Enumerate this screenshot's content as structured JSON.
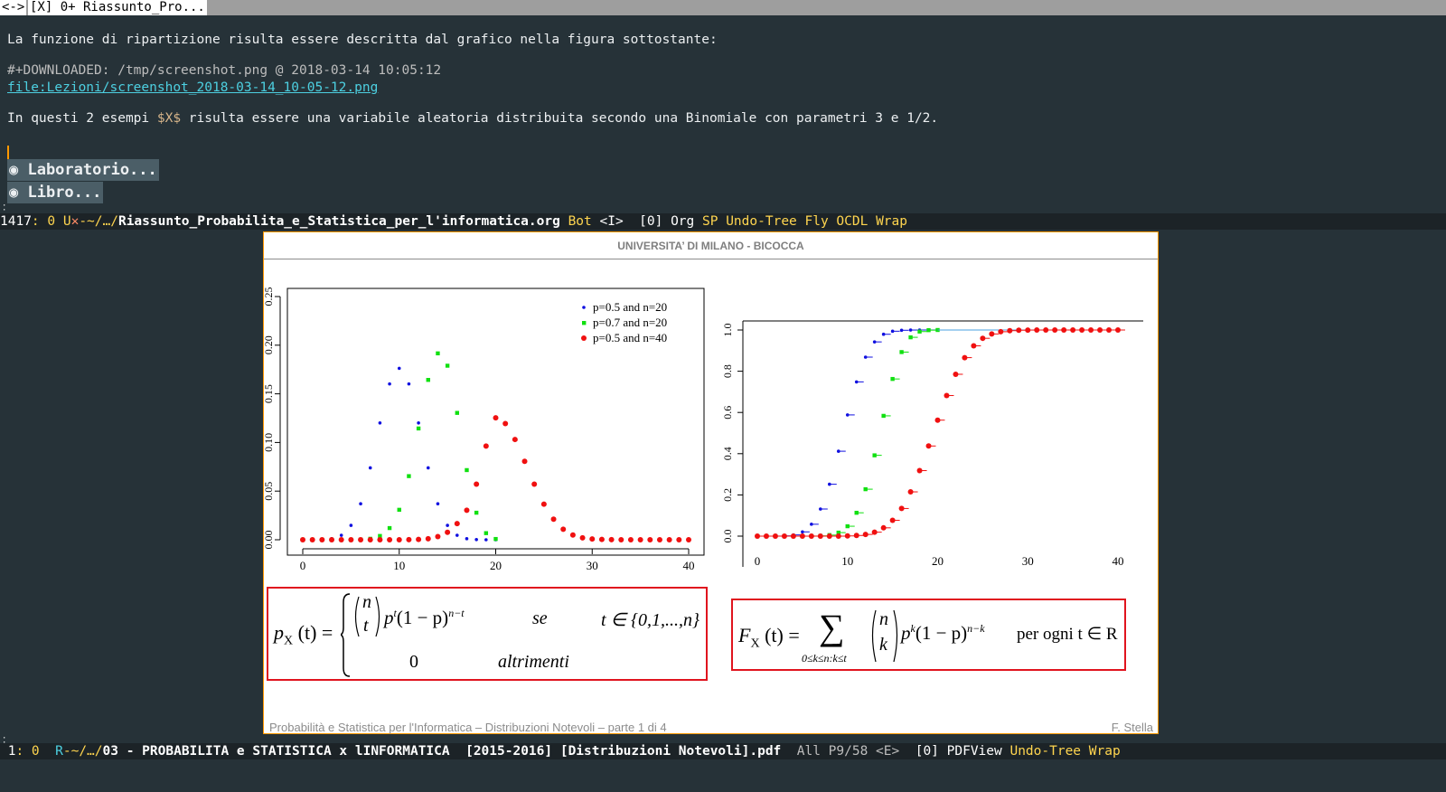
{
  "tabbar": {
    "nav": "<->",
    "tab_label": "[X] 0+ Riassunto_Pro..."
  },
  "buffer": {
    "line1": "La funzione di ripartizione risulta essere descritta dal grafico nella figura sottostante:",
    "line2": "#+DOWNLOADED: /tmp/screenshot.png @ 2018-03-14 10:05:12",
    "line3": "file:Lezioni/screenshot_2018-03-14_10-05-12.png",
    "line4_pre": "In questi 2 esempi ",
    "line4_latex": "$X$",
    "line4_post": " risulta essere una variabile aleatoria distribuita secondo una Binomiale con parametri 3 e 1/2.",
    "heading1": "◉ Laboratorio...",
    "heading2": "◉ Libro..."
  },
  "modeline_top": {
    "line": "1417",
    "col": ": 0 ",
    "state": "U",
    "mark": "✕",
    "dir": "-~/…/",
    "file": "Riassunto_Probabilita_e_Statistica_per_l'informatica.org",
    "pos": " Bot ",
    "input": "<I>",
    "minor": "  [0] Org ",
    "modes": "SP Undo-Tree Fly OCDL Wrap"
  },
  "modeline_bottom": {
    "line": " 1",
    "col": ": 0  ",
    "state": "R",
    "dir": "-~/…/",
    "file": "03 - PROBABILITA e STATISTICA x lINFORMATICA  [2015-2016] [Distribuzioni Notevoli].pdf",
    "pos": "  All P9/58 ",
    "input": "<E>",
    "minor": "  [0] PDFView ",
    "modes": "Undo-Tree Wrap"
  },
  "pdf": {
    "header": "UNIVERSITA’ DI MILANO - BICOCCA",
    "footer_left": "Probabilità e Statistica per l'Informatica – Distribuzioni Notevoli – parte 1 di 4",
    "footer_right": "F. Stella"
  },
  "formula_pmf": {
    "lhs": "p",
    "lhs_sub": "X",
    "lhs_arg": "(t) =",
    "binom_top": "n",
    "binom_bot": "t",
    "term": "p",
    "term_sup": "t",
    "term_mid": "(1 − p)",
    "term_sup2": "n−t",
    "cond1": "se",
    "range": "t ∈ {0,1,...,n}",
    "zero": "0",
    "cond2": "altrimenti"
  },
  "formula_cdf": {
    "lhs": "F",
    "lhs_sub": "X",
    "lhs_arg": "(t) =",
    "sum": "∑",
    "sum_sub": "0≤k≤n:k≤t",
    "binom_top": "n",
    "binom_bot": "k",
    "term": "p",
    "term_sup": "k",
    "term_mid": "(1 − p)",
    "term_sup2": "n−k",
    "cond": "per ogni t ∈ R"
  },
  "chart_data": [
    {
      "type": "scatter",
      "title": "",
      "xlabel": "",
      "ylabel": "",
      "xlim": [
        0,
        40
      ],
      "ylim": [
        0,
        0.26
      ],
      "x_ticks": [
        0,
        10,
        20,
        30,
        40
      ],
      "y_ticks": [
        "0.00",
        "0.05",
        "0.10",
        "0.15",
        "0.20",
        "0.25"
      ],
      "legend_position": "top-right",
      "series": [
        {
          "name": "p=0.5 and n=20",
          "color": "#1010e0",
          "x": [
            0,
            1,
            2,
            3,
            4,
            5,
            6,
            7,
            8,
            9,
            10,
            11,
            12,
            13,
            14,
            15,
            16,
            17,
            18,
            19,
            20
          ],
          "y": [
            0,
            0,
            0.0002,
            0.0011,
            0.0046,
            0.0148,
            0.037,
            0.0739,
            0.1201,
            0.1602,
            0.1762,
            0.1602,
            0.1201,
            0.0739,
            0.037,
            0.0148,
            0.0046,
            0.0011,
            0.0002,
            0,
            0
          ]
        },
        {
          "name": "p=0.7 and n=20",
          "color": "#10e010",
          "x": [
            0,
            1,
            2,
            3,
            4,
            5,
            6,
            7,
            8,
            9,
            10,
            11,
            12,
            13,
            14,
            15,
            16,
            17,
            18,
            19,
            20
          ],
          "y": [
            0,
            0,
            0,
            0,
            0,
            0,
            0.0002,
            0.001,
            0.0039,
            0.012,
            0.0308,
            0.0654,
            0.1144,
            0.1643,
            0.1916,
            0.1789,
            0.1304,
            0.0716,
            0.0278,
            0.0068,
            0.0008
          ]
        },
        {
          "name": "p=0.5 and n=40",
          "color": "#f01010",
          "x": [
            0,
            1,
            2,
            3,
            4,
            5,
            6,
            7,
            8,
            9,
            10,
            11,
            12,
            13,
            14,
            15,
            16,
            17,
            18,
            19,
            20,
            21,
            22,
            23,
            24,
            25,
            26,
            27,
            28,
            29,
            30,
            31,
            32,
            33,
            34,
            35,
            36,
            37,
            38,
            39,
            40
          ],
          "y": [
            0,
            0,
            0,
            0,
            0,
            0,
            0,
            0,
            0,
            0,
            0,
            0.0001,
            0.0003,
            0.0011,
            0.0032,
            0.0077,
            0.0166,
            0.0303,
            0.0572,
            0.0963,
            0.1254,
            0.1194,
            0.1031,
            0.0806,
            0.0572,
            0.0366,
            0.0211,
            0.0108,
            0.0049,
            0.002,
            0.0008,
            0.0003,
            0.0001,
            0,
            0,
            0,
            0,
            0,
            0,
            0,
            0
          ]
        }
      ]
    },
    {
      "type": "scatter",
      "title": "",
      "xlabel": "",
      "ylabel": "",
      "xlim": [
        0,
        40
      ],
      "ylim": [
        0,
        1.05
      ],
      "x_ticks": [
        0,
        10,
        20,
        30,
        40
      ],
      "y_ticks": [
        "0.0",
        "0.2",
        "0.4",
        "0.6",
        "0.8",
        "1.0"
      ],
      "series": [
        {
          "name": "",
          "color": "#1010e0",
          "x": [
            0,
            1,
            2,
            3,
            4,
            5,
            6,
            7,
            8,
            9,
            10,
            11,
            12,
            13,
            14,
            15,
            16,
            17,
            18,
            19,
            20
          ],
          "y": [
            0,
            0,
            0.0002,
            0.0013,
            0.0059,
            0.0207,
            0.0577,
            0.1316,
            0.2517,
            0.4119,
            0.5881,
            0.7483,
            0.8684,
            0.9423,
            0.9793,
            0.9941,
            0.9987,
            0.9998,
            1,
            1,
            1
          ]
        },
        {
          "name": "",
          "color": "#10e010",
          "x": [
            0,
            1,
            2,
            3,
            4,
            5,
            6,
            7,
            8,
            9,
            10,
            11,
            12,
            13,
            14,
            15,
            16,
            17,
            18,
            19,
            20
          ],
          "y": [
            0,
            0,
            0,
            0,
            0,
            0,
            0.0003,
            0.0013,
            0.0051,
            0.0171,
            0.048,
            0.1133,
            0.2277,
            0.392,
            0.5836,
            0.7625,
            0.8929,
            0.9645,
            0.9924,
            0.9992,
            1
          ]
        },
        {
          "name": "",
          "color": "#f01010",
          "x": [
            0,
            1,
            2,
            3,
            4,
            5,
            6,
            7,
            8,
            9,
            10,
            11,
            12,
            13,
            14,
            15,
            16,
            17,
            18,
            19,
            20,
            21,
            22,
            23,
            24,
            25,
            26,
            27,
            28,
            29,
            30,
            31,
            32,
            33,
            34,
            35,
            36,
            37,
            38,
            39,
            40
          ],
          "y": [
            0,
            0,
            0,
            0,
            0,
            0,
            0,
            0,
            0,
            0,
            0.0011,
            0.0032,
            0.0083,
            0.0192,
            0.0403,
            0.0769,
            0.1341,
            0.2148,
            0.3179,
            0.4373,
            0.5627,
            0.6821,
            0.7852,
            0.8659,
            0.9231,
            0.9597,
            0.9808,
            0.9917,
            0.9968,
            0.9989,
            0.9997,
            0.9999,
            1,
            1,
            1,
            1,
            1,
            1,
            1,
            1,
            1
          ]
        }
      ]
    }
  ]
}
